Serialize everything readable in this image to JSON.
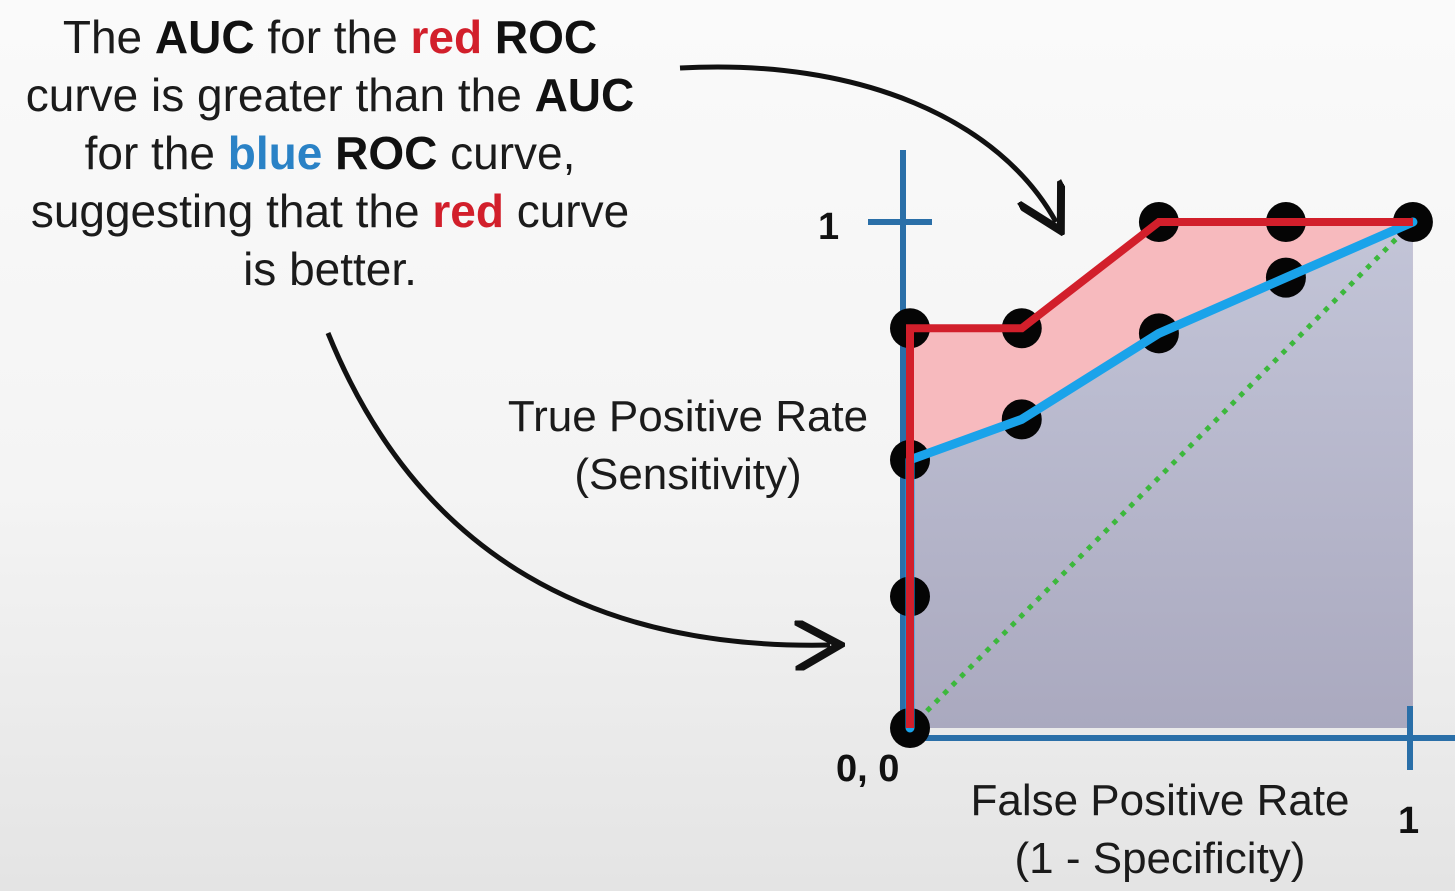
{
  "caption": {
    "line1": {
      "p1": "The ",
      "b1": "AUC",
      "p2": " for the ",
      "red": "red",
      "p3": " ",
      "b2": "ROC"
    },
    "line2": {
      "p1": "curve is greater than the ",
      "b1": "AUC"
    },
    "line3": {
      "p1": "for the ",
      "blue": "blue",
      "p2": " ",
      "b1": "ROC",
      "p3": " curve,"
    },
    "line4": {
      "p1": "suggesting that the ",
      "red": "red",
      "p2": " curve"
    },
    "line5": {
      "p1": "is better."
    }
  },
  "chart_data": {
    "type": "line",
    "x_label_line1": "False Positive Rate",
    "x_label_line2": "(1 - Specificity)",
    "y_label_line1": "True Positive Rate",
    "y_label_line2": "(Sensitivity)",
    "tick_labels": {
      "origin": "0, 0",
      "x_max": "1",
      "y_max": "1"
    },
    "xlim": [
      0,
      1
    ],
    "ylim": [
      0,
      1
    ],
    "series": [
      {
        "color": "#d21f2b",
        "fill": "#f7b6bb",
        "points": [
          [
            0,
            0
          ],
          [
            0,
            0.79
          ],
          [
            0.22,
            0.79
          ],
          [
            0.49,
            1.0
          ],
          [
            0.74,
            1.0
          ],
          [
            0.99,
            1.0
          ]
        ]
      },
      {
        "color": "#1aa3ea",
        "fill": "#b9bccd",
        "points": [
          [
            0,
            0
          ],
          [
            0,
            0.53
          ],
          [
            0.22,
            0.61
          ],
          [
            0.49,
            0.78
          ],
          [
            0.74,
            0.89
          ],
          [
            0.99,
            1.0
          ]
        ]
      }
    ],
    "markers": [
      [
        0,
        0
      ],
      [
        0,
        0.26
      ],
      [
        0,
        0.53
      ],
      [
        0,
        0.79
      ],
      [
        0.22,
        0.79
      ],
      [
        0.22,
        0.61
      ],
      [
        0.49,
        1.0
      ],
      [
        0.49,
        0.78
      ],
      [
        0.74,
        1.0
      ],
      [
        0.74,
        0.89
      ],
      [
        0.99,
        1.0
      ]
    ],
    "reference_line": {
      "color": "#3cb83c",
      "style": "dotted",
      "points": [
        [
          0,
          0
        ],
        [
          0.99,
          1.0
        ]
      ]
    },
    "axis_color": "#2a6fa8"
  }
}
